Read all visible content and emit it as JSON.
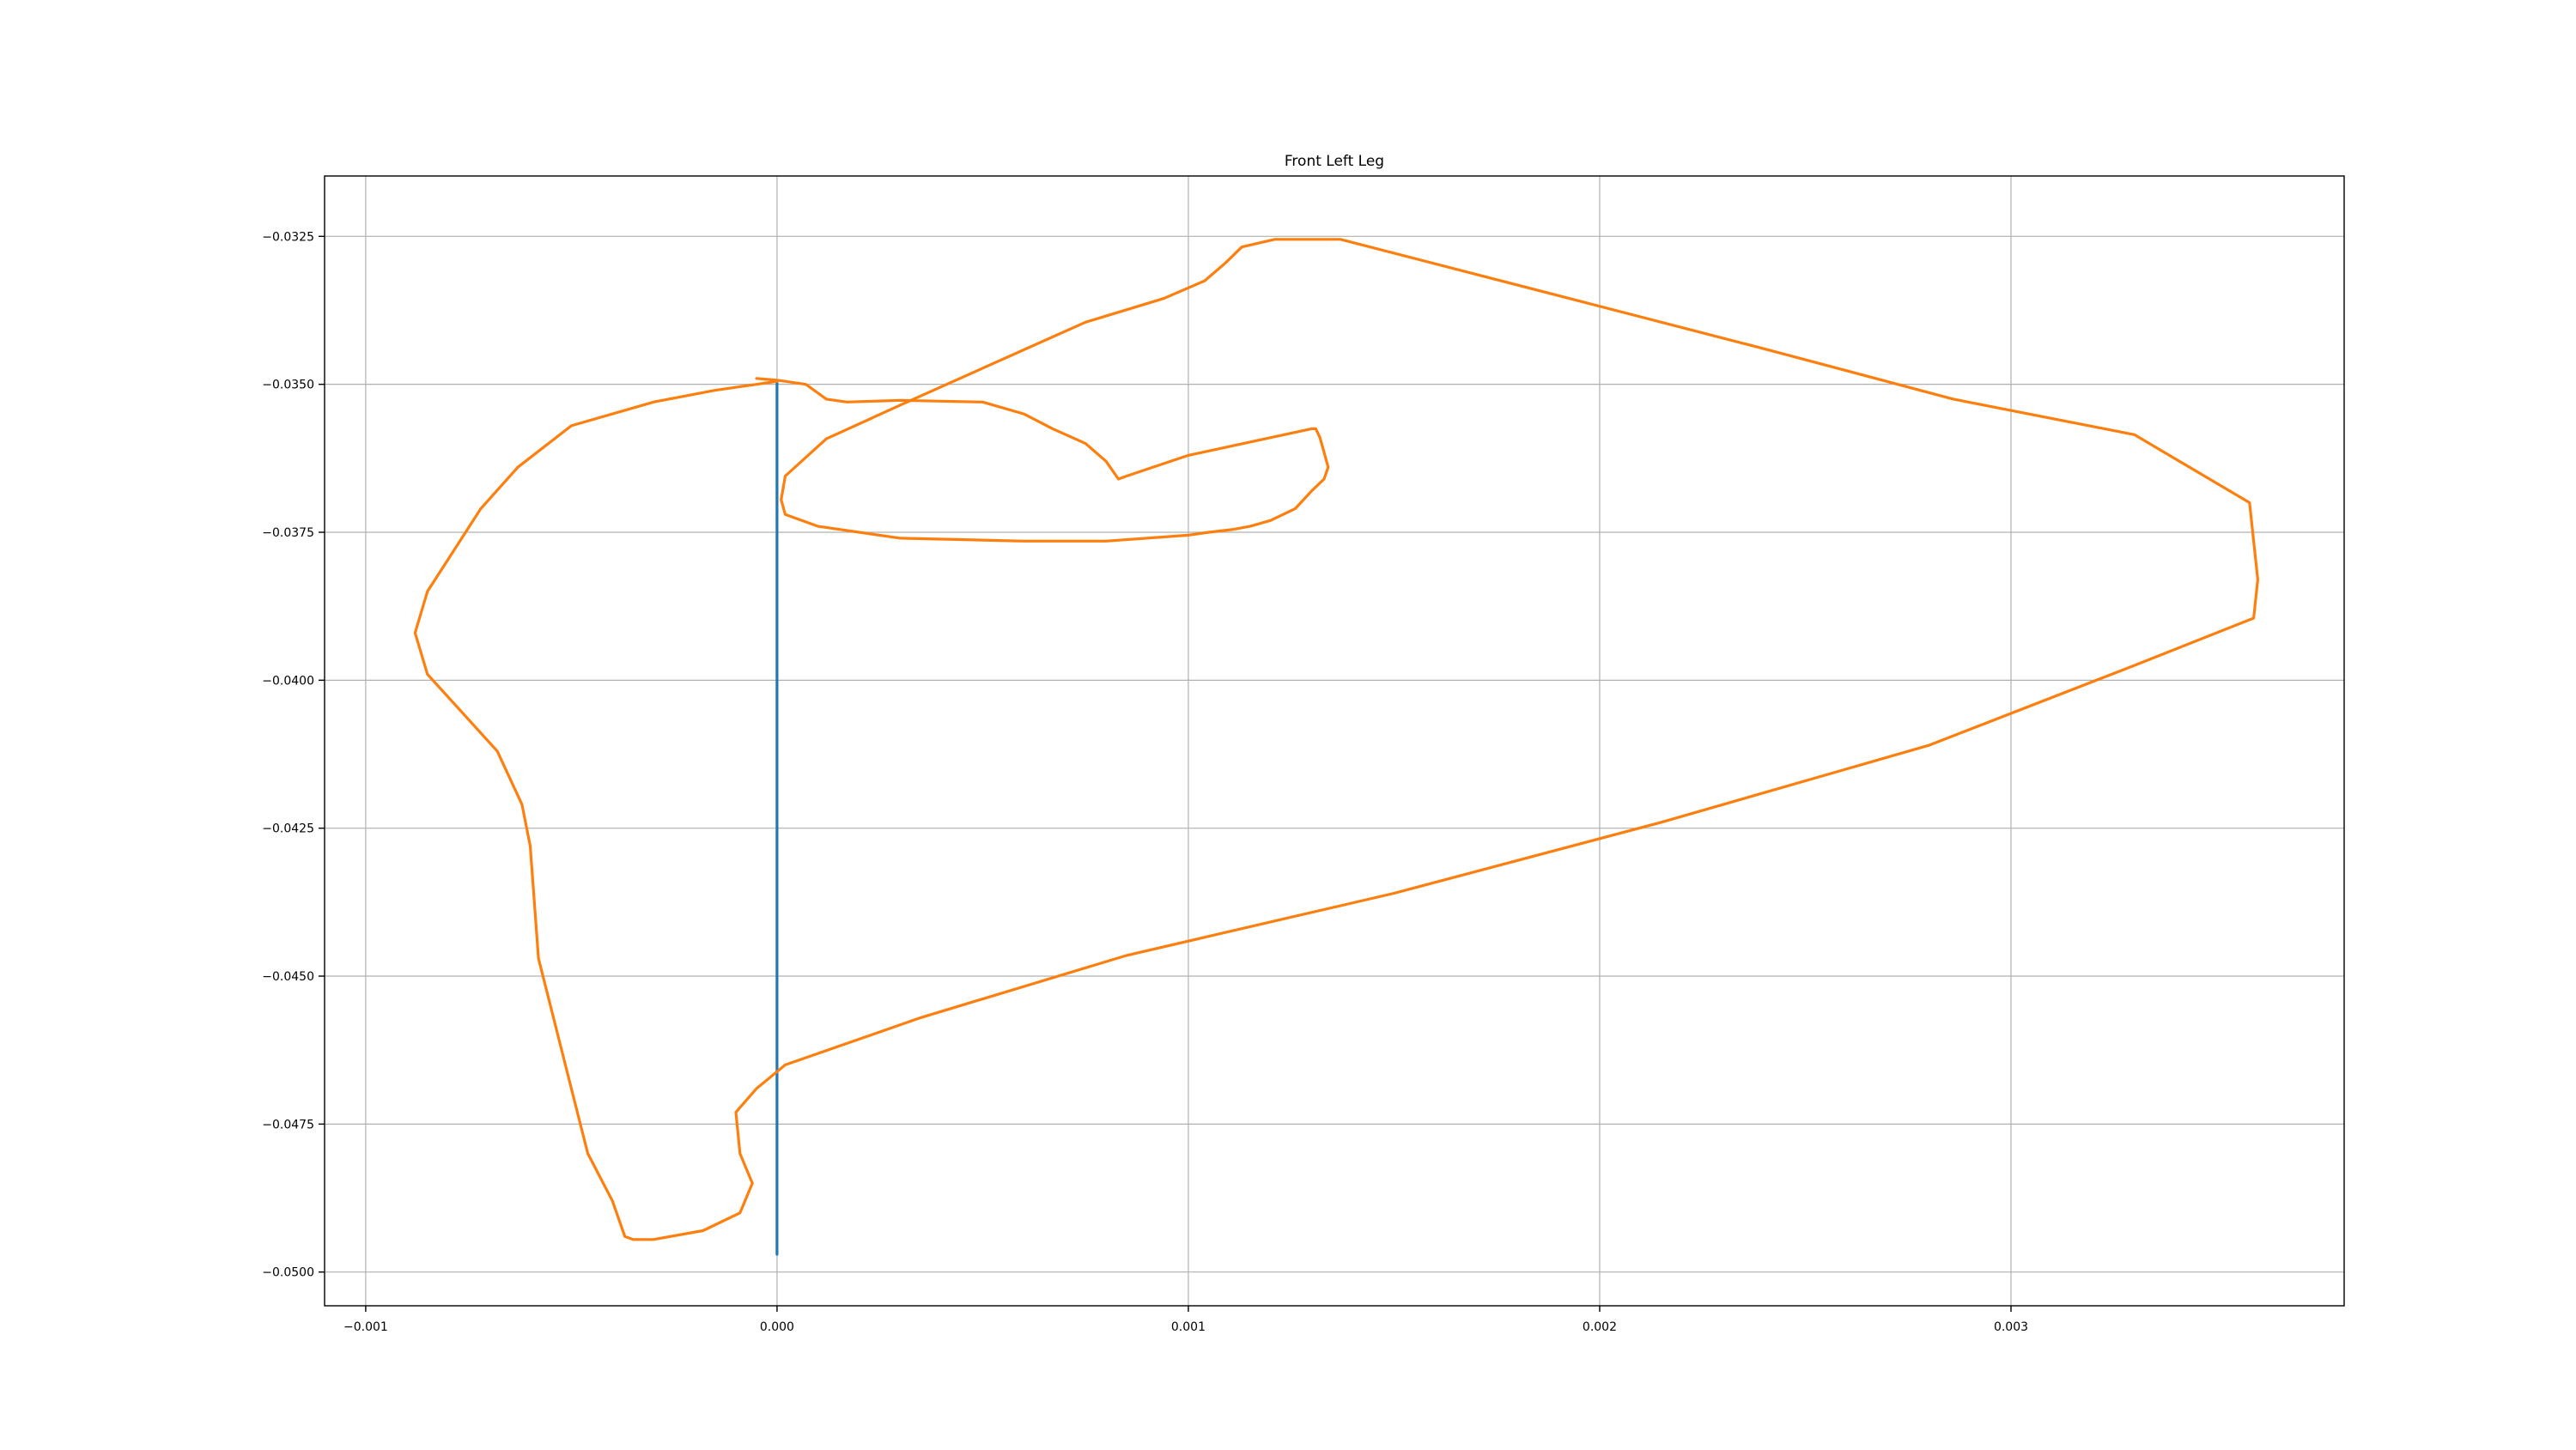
{
  "chart_data": {
    "type": "line",
    "title": "Front Left Leg",
    "xlabel": "",
    "ylabel": "",
    "xlim": [
      -0.0011,
      0.00381
    ],
    "ylim": [
      -0.05057,
      -0.03148
    ],
    "grid": true,
    "x_ticks": [
      -0.001,
      0.0,
      0.001,
      0.002,
      0.003
    ],
    "x_tick_labels": [
      "−0.001",
      "0.000",
      "0.001",
      "0.002",
      "0.003"
    ],
    "y_ticks": [
      -0.0325,
      -0.035,
      -0.0375,
      -0.04,
      -0.0425,
      -0.045,
      -0.0475,
      -0.05
    ],
    "y_tick_labels": [
      "−0.0325",
      "−0.0350",
      "−0.0375",
      "−0.0400",
      "−0.0425",
      "−0.0450",
      "−0.0475",
      "−0.0500"
    ],
    "series": [
      {
        "color": "#1f77b4",
        "x": [
          0.0,
          0.0
        ],
        "y": [
          -0.03495,
          -0.0497
        ]
      },
      {
        "color": "#ff7f0e",
        "x": [
          -5e-05,
          0.0,
          7e-05,
          0.0001,
          0.00012,
          0.00017,
          0.0003,
          0.0005,
          0.0006,
          0.00067,
          0.00075,
          0.0008,
          0.00082,
          0.00083,
          0.00085,
          0.001,
          0.0013,
          0.00131,
          0.00132,
          0.00133,
          0.00134,
          0.00133,
          0.0013,
          0.00126,
          0.0012,
          0.00115,
          0.00111,
          0.00105,
          0.001,
          0.0008,
          0.0006,
          0.0003,
          0.0001,
          2e-05,
          1e-05,
          2e-05,
          0.00012,
          0.0003,
          0.00075,
          0.00094,
          0.00104,
          0.00109,
          0.00113,
          0.00121,
          0.00137,
          0.0024,
          0.00286,
          0.0033,
          0.00358,
          0.00359,
          0.0036,
          0.00359,
          0.0033,
          0.0028,
          0.00215,
          0.0015,
          0.00085,
          0.00035,
          2e-05,
          -5e-05,
          -0.0001,
          -9e-05,
          -6e-05,
          -9e-05,
          -0.00018,
          -0.0003,
          -0.00035,
          -0.00037,
          -0.0004,
          -0.00046,
          -0.0005,
          -0.00058,
          -0.0006,
          -0.00062,
          -0.00068,
          -0.00085,
          -0.00088,
          -0.00085,
          -0.00072,
          -0.00063,
          -0.0005,
          -0.0003,
          -0.00015,
          -5e-05,
          0.0
        ],
        "y": [
          -0.0349,
          -0.03493,
          -0.035,
          -0.03515,
          -0.03525,
          -0.0353,
          -0.03527,
          -0.0353,
          -0.0355,
          -0.03575,
          -0.036,
          -0.0363,
          -0.0365,
          -0.0366,
          -0.03655,
          -0.0362,
          -0.03575,
          -0.03575,
          -0.0359,
          -0.03615,
          -0.0364,
          -0.0366,
          -0.0368,
          -0.0371,
          -0.0373,
          -0.0374,
          -0.03745,
          -0.0375,
          -0.03755,
          -0.03765,
          -0.03765,
          -0.0376,
          -0.0374,
          -0.0372,
          -0.03695,
          -0.03655,
          -0.03592,
          -0.03535,
          -0.03395,
          -0.03355,
          -0.03325,
          -0.03295,
          -0.03268,
          -0.03255,
          -0.03255,
          -0.0344,
          -0.03525,
          -0.03585,
          -0.037,
          -0.03765,
          -0.0383,
          -0.03895,
          -0.03975,
          -0.0411,
          -0.0424,
          -0.0436,
          -0.04465,
          -0.0457,
          -0.0465,
          -0.0469,
          -0.0473,
          -0.048,
          -0.0485,
          -0.049,
          -0.0493,
          -0.04945,
          -0.04945,
          -0.0494,
          -0.0488,
          -0.048,
          -0.0469,
          -0.0447,
          -0.0428,
          -0.0421,
          -0.0412,
          -0.0399,
          -0.0392,
          -0.0385,
          -0.0371,
          -0.0364,
          -0.0357,
          -0.0353,
          -0.0351,
          -0.035,
          -0.03495
        ]
      }
    ]
  }
}
